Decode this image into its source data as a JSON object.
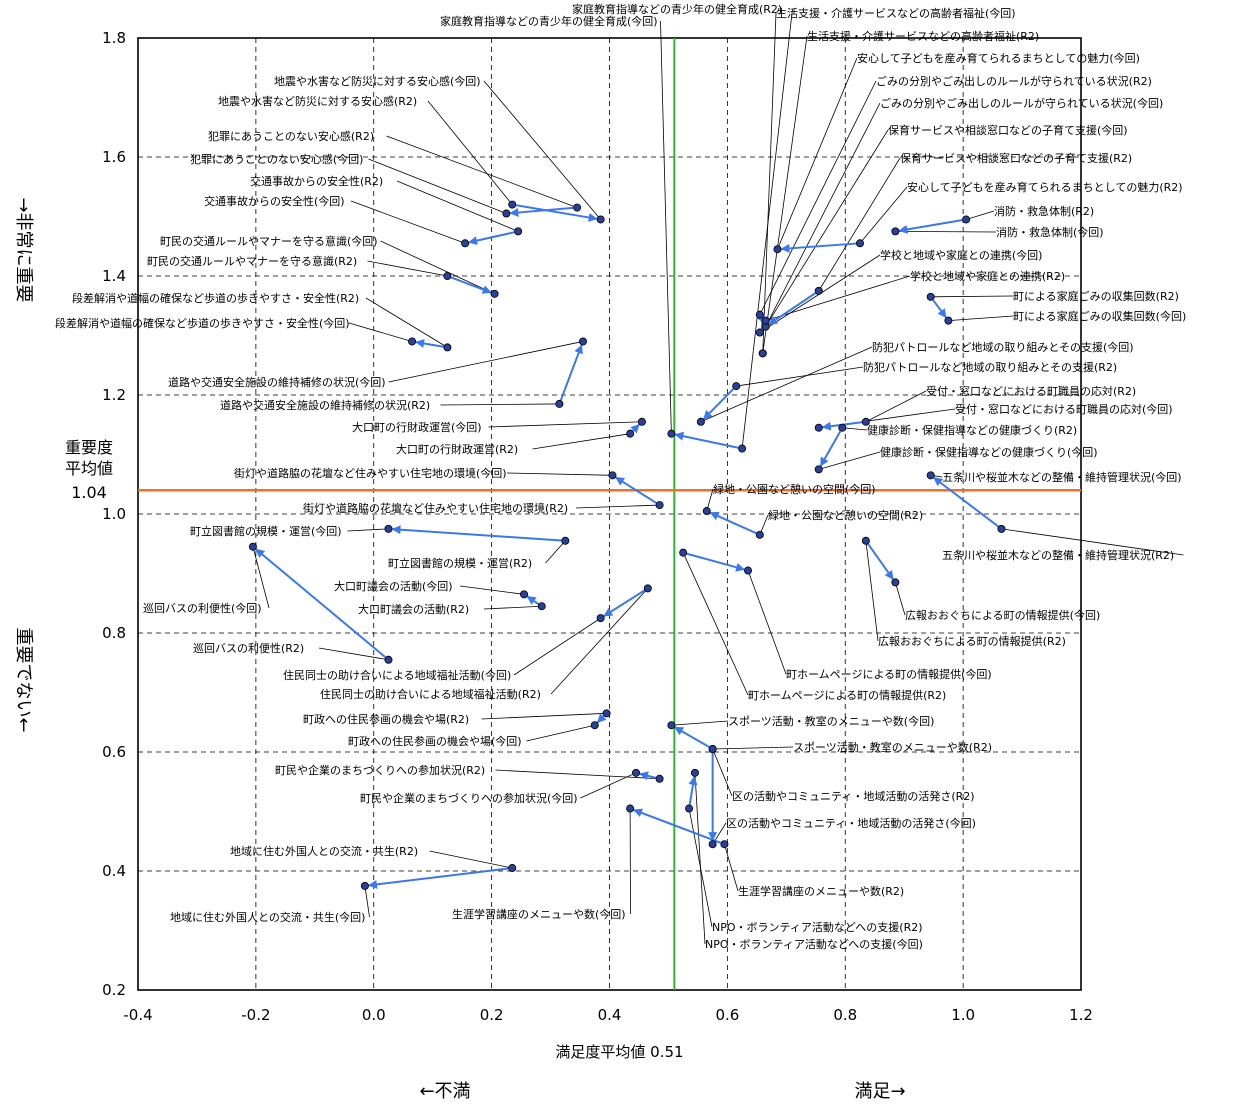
{
  "chart_data": {
    "type": "scatter",
    "xlabel": "満足度平均値 0.51",
    "xlim": [
      -0.4,
      1.2
    ],
    "ylim": [
      0.2,
      1.8
    ],
    "xticks": [
      "-0.4",
      "-0.2",
      "0.0",
      "0.2",
      "0.4",
      "0.6",
      "0.8",
      "1.0",
      "1.2"
    ],
    "yticks": [
      "0.2",
      "0.4",
      "0.6",
      "0.8",
      "1.0",
      "1.2",
      "1.4",
      "1.6",
      "1.8"
    ],
    "grid": true,
    "ref_lines": {
      "x": {
        "value": 0.51,
        "color": "#2db52d"
      },
      "y": {
        "value": 1.04,
        "color": "#f07020",
        "label_top": "重要度",
        "label_mid": "平均値",
        "label_value": "1.04"
      }
    },
    "side_labels": {
      "top": "→非常に重要",
      "bottom": "重要でない←",
      "left": "←不満",
      "right": "満足→"
    },
    "colors": {
      "arrow": "#3a78f0",
      "point": "#2a3f9a",
      "leader": "#000000"
    },
    "items": [
      {
        "r2": [
          0.625,
          1.11
        ],
        "now": [
          0.505,
          1.135
        ],
        "r2_label": "家庭教育指導などの青少年の健全育成(R2)",
        "now_label": "家庭教育指導などの青少年の健全育成(今回)"
      },
      {
        "r2": [
          0.66,
          1.27
        ],
        "now": [
          0.66,
          1.27
        ],
        "r2_label": "生活支援・介護サービスなどの高齢者福祉(R2)",
        "now_label": "生活支援・介護サービスなどの高齢者福祉(今回)"
      },
      {
        "r2": [
          0.235,
          1.52
        ],
        "now": [
          0.385,
          1.495
        ],
        "r2_label": "地震や水害など防災に対する安心感(R2)",
        "now_label": "地震や水害など防災に対する安心感(今回)"
      },
      {
        "r2": [
          0.345,
          1.515
        ],
        "now": [
          0.225,
          1.505
        ],
        "r2_label": "犯罪にあうことのない安心感(R2)",
        "now_label": "犯罪にあうことのない安心感(今回)"
      },
      {
        "r2": [
          0.245,
          1.475
        ],
        "now": [
          0.155,
          1.455
        ],
        "r2_label": "交通事故からの安全性(R2)",
        "now_label": "交通事故からの安全性(今回)"
      },
      {
        "r2": [
          0.125,
          1.4
        ],
        "now": [
          0.205,
          1.37
        ],
        "r2_label": "町民の交通ルールやマナーを守る意識(R2)",
        "now_label": "町民の交通ルールやマナーを守る意識(今回)"
      },
      {
        "r2": [
          0.125,
          1.28
        ],
        "now": [
          0.065,
          1.29
        ],
        "r2_label": "段差解消や道幅の確保など歩道の歩きやすさ・安全性(R2)",
        "now_label": "段差解消や道幅の確保など歩道の歩きやすさ・安全性(今回)"
      },
      {
        "r2": [
          0.315,
          1.185
        ],
        "now": [
          0.355,
          1.29
        ],
        "r2_label": "道路や交通安全施設の維持補修の状況(R2)",
        "now_label": "道路や交通安全施設の維持補修の状況(今回)"
      },
      {
        "r2": [
          0.435,
          1.135
        ],
        "now": [
          0.455,
          1.155
        ],
        "r2_label": "大口町の行財政運営(R2)",
        "now_label": "大口町の行財政運営(今回)"
      },
      {
        "r2": [
          0.485,
          1.015
        ],
        "now": [
          0.405,
          1.065
        ],
        "r2_label": "街灯や道路脇の花壇など住みやすい住宅地の環境(R2)",
        "now_label": "街灯や道路脇の花壇など住みやすい住宅地の環境(今回)"
      },
      {
        "r2": [
          0.325,
          0.955
        ],
        "now": [
          0.025,
          0.975
        ],
        "r2_label": "町立図書館の規模・運営(R2)",
        "now_label": "町立図書館の規模・運営(今回)"
      },
      {
        "r2": [
          0.285,
          0.845
        ],
        "now": [
          0.255,
          0.865
        ],
        "r2_label": "大口町議会の活動(R2)",
        "now_label": "大口町議会の活動(今回)"
      },
      {
        "r2": [
          0.025,
          0.755
        ],
        "now": [
          -0.205,
          0.945
        ],
        "r2_label": "巡回バスの利便性(R2)",
        "now_label": "巡回バスの利便性(今回)"
      },
      {
        "r2": [
          0.465,
          0.875
        ],
        "now": [
          0.385,
          0.825
        ],
        "r2_label": "住民同士の助け合いによる地域福祉活動(R2)",
        "now_label": "住民同士の助け合いによる地域福祉活動(今回)"
      },
      {
        "r2": [
          0.395,
          0.665
        ],
        "now": [
          0.375,
          0.645
        ],
        "r2_label": "町政への住民参画の機会や場(R2)",
        "now_label": "町政への住民参画の機会や場(今回)"
      },
      {
        "r2": [
          0.485,
          0.555
        ],
        "now": [
          0.445,
          0.565
        ],
        "r2_label": "町民や企業のまちづくりへの参加状況(R2)",
        "now_label": "町民や企業のまちづくりへの参加状況(今回)"
      },
      {
        "r2": [
          0.235,
          0.405
        ],
        "now": [
          -0.015,
          0.375
        ],
        "r2_label": "地域に住む外国人との交流・共生(R2)",
        "now_label": "地域に住む外国人との交流・共生(今回)"
      },
      {
        "r2": [
          0.575,
          0.605
        ],
        "now": [
          0.505,
          0.645
        ],
        "r2_label": "スポーツ活動・教室のメニューや数(R2)",
        "now_label": "スポーツ活動・教室のメニューや数(今回)"
      },
      {
        "r2": [
          0.575,
          0.605
        ],
        "now": [
          0.575,
          0.445
        ],
        "r2_label": "区の活動やコミュニティ・地域活動の活発さ(R2)",
        "now_label": "区の活動やコミュニティ・地域活動の活発さ(今回)"
      },
      {
        "r2": [
          0.595,
          0.445
        ],
        "now": [
          0.435,
          0.505
        ],
        "r2_label": "生涯学習講座のメニューや数(R2)",
        "now_label": "生涯学習講座のメニューや数(今回)"
      },
      {
        "r2": [
          0.535,
          0.505
        ],
        "now": [
          0.545,
          0.565
        ],
        "r2_label": "NPO・ボランティア活動などへの支援(R2)",
        "now_label": "NPO・ボランティア活動などへの支援(今回)"
      },
      {
        "r2": [
          0.525,
          0.935
        ],
        "now": [
          0.635,
          0.905
        ],
        "r2_label": "町ホームページによる町の情報提供(R2)",
        "now_label": "町ホームページによる町の情報提供(今回)"
      },
      {
        "r2": [
          0.655,
          0.965
        ],
        "now": [
          0.565,
          1.005
        ],
        "r2_label": "緑地・公園など憩いの空間(R2)",
        "now_label": "緑地・公園など憩いの空間(今回)"
      },
      {
        "r2": [
          1.065,
          0.975
        ],
        "now": [
          0.945,
          1.065
        ],
        "r2_label": "五条川や桜並木などの整備・維持管理状況(R2)",
        "now_label": "五条川や桜並木などの整備・維持管理状況(今回)"
      },
      {
        "r2": [
          0.835,
          0.955
        ],
        "now": [
          0.885,
          0.885
        ],
        "r2_label": "広報おおぐちによる町の情報提供(R2)",
        "now_label": "広報おおぐちによる町の情報提供(今回)"
      },
      {
        "r2": [
          0.795,
          1.145
        ],
        "now": [
          0.755,
          1.075
        ],
        "r2_label": "健康診断・保健指導などの健康づくり(R2)",
        "now_label": "健康診断・保健指導などの健康づくり(今回)"
      },
      {
        "r2": [
          0.835,
          1.155
        ],
        "now": [
          0.755,
          1.145
        ],
        "r2_label": "受付・窓口などにおける町職員の応対(R2)",
        "now_label": "受付・窓口などにおける町職員の応対(今回)"
      },
      {
        "r2": [
          0.615,
          1.215
        ],
        "now": [
          0.555,
          1.155
        ],
        "r2_label": "防犯パトロールなど地域の取り組みとその支援(R2)",
        "now_label": "防犯パトロールなど地域の取り組みとその支援(今回)"
      },
      {
        "r2": [
          0.945,
          1.365
        ],
        "now": [
          0.975,
          1.325
        ],
        "r2_label": "町による家庭ごみの収集回数(R2)",
        "now_label": "町による家庭ごみの収集回数(今回)"
      },
      {
        "r2": [
          1.005,
          1.495
        ],
        "now": [
          0.885,
          1.475
        ],
        "r2_label": "消防・救急体制(R2)",
        "now_label": "消防・救急体制(今回)"
      },
      {
        "r2": [
          0.825,
          1.455
        ],
        "now": [
          0.685,
          1.445
        ],
        "r2_label": "安心して子どもを産み育てられるまちとしての魅力(R2)",
        "now_label": "安心して子どもを産み育てられるまちとしての魅力(今回)"
      },
      {
        "r2": [
          0.755,
          1.375
        ],
        "now": [
          0.665,
          1.315
        ],
        "r2_label": "保育サービスや相談窓口などの子育て支援(R2)",
        "now_label": "保育サービスや相談窓口などの子育て支援(今回)"
      },
      {
        "r2": [
          0.655,
          1.335
        ],
        "now": [
          0.665,
          1.315
        ],
        "r2_label": "ごみの分別やごみ出しのルールが守られている状況(R2)",
        "now_label": "ごみの分別やごみ出しのルールが守られている状況(今回)"
      },
      {
        "r2": [
          0.665,
          1.325
        ],
        "now": [
          0.655,
          1.305
        ],
        "r2_label": "学校と地域や家庭との連携(R2)",
        "now_label": "学校と地域や家庭との連携(今回)"
      }
    ]
  }
}
